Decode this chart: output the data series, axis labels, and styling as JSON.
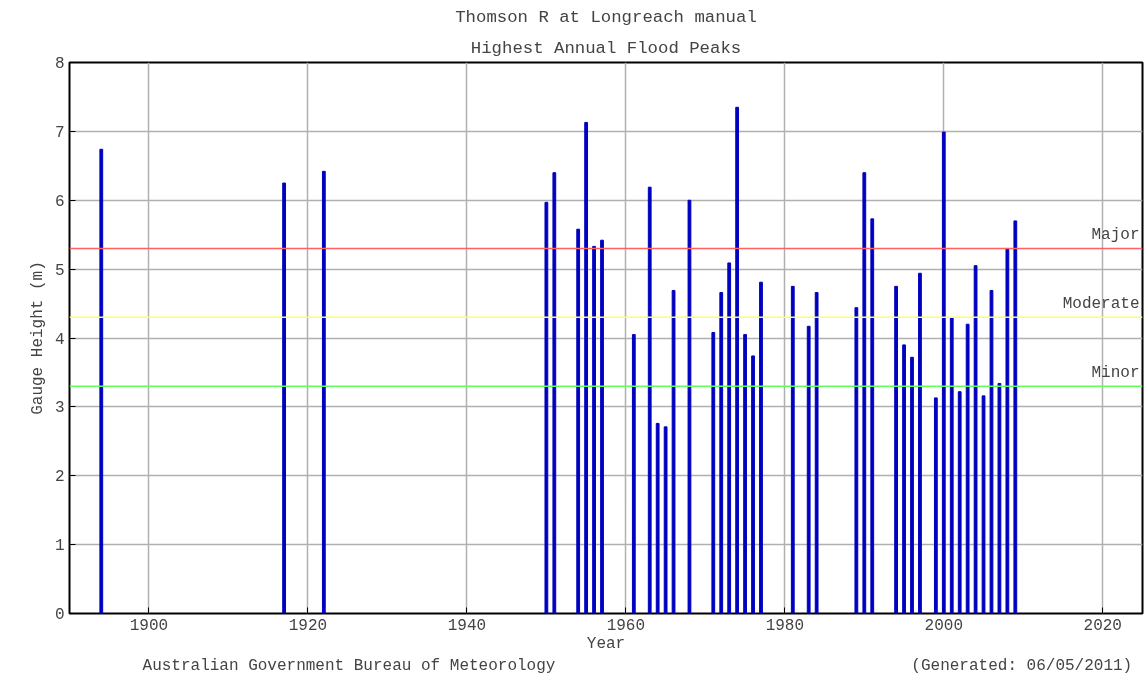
{
  "chart_data": {
    "type": "bar",
    "title": "Thomson R at Longreach manual",
    "subtitle": "Highest Annual Flood Peaks",
    "xlabel": "Year",
    "ylabel": "Gauge Height (m)",
    "x": [
      1894,
      1917,
      1922,
      1950,
      1951,
      1954,
      1955,
      1956,
      1957,
      1961,
      1963,
      1964,
      1965,
      1966,
      1968,
      1971,
      1972,
      1973,
      1974,
      1975,
      1976,
      1977,
      1981,
      1983,
      1984,
      1989,
      1990,
      1991,
      1994,
      1995,
      1996,
      1997,
      1999,
      2000,
      2001,
      2002,
      2003,
      2004,
      2005,
      2006,
      2007,
      2008,
      2009
    ],
    "series": [
      {
        "color": "#0000c0",
        "values": [
          6.74,
          6.25,
          6.42,
          5.97,
          6.4,
          5.58,
          7.13,
          5.33,
          5.42,
          4.05,
          6.19,
          2.76,
          2.71,
          4.69,
          6.0,
          4.08,
          4.66,
          5.09,
          7.35,
          4.05,
          3.74,
          4.81,
          4.75,
          4.17,
          4.66,
          4.44,
          6.4,
          5.73,
          4.75,
          3.9,
          3.72,
          4.94,
          3.13,
          6.99,
          4.29,
          3.22,
          4.2,
          5.05,
          3.16,
          4.69,
          3.34,
          5.3,
          5.7
        ]
      }
    ],
    "xlim": [
      1890,
      2025
    ],
    "xticks": [
      1900,
      1920,
      1940,
      1960,
      1980,
      2000,
      2020
    ],
    "ylim": [
      0,
      8
    ],
    "yticks": [
      0,
      1,
      2,
      3,
      4,
      5,
      6,
      7,
      8
    ],
    "grid": true,
    "ref_lines": [
      {
        "axis": "y",
        "value": 5.3,
        "label": "Major",
        "color": "#ff6060"
      },
      {
        "axis": "y",
        "value": 4.3,
        "label": "Moderate",
        "color": "#ffff60"
      },
      {
        "axis": "y",
        "value": 3.3,
        "label": "Minor",
        "color": "#60ff60"
      }
    ],
    "annotations": [
      "Australian Government Bureau of Meteorology",
      "(Generated: 06/05/2011)"
    ]
  }
}
